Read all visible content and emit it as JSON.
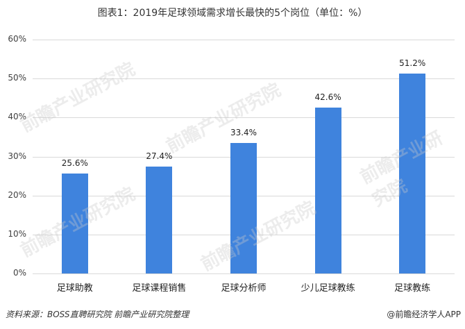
{
  "title": "图表1：2019年足球领域需求增长最快的5个岗位（单位：%）",
  "chart_data": {
    "type": "bar",
    "title": "图表1：2019年足球领域需求增长最快的5个岗位（单位：%）",
    "categories": [
      "足球助教",
      "足球课程销售",
      "足球分析师",
      "少儿足球教练",
      "足球教练"
    ],
    "values": [
      25.6,
      27.4,
      33.4,
      42.6,
      51.2
    ],
    "value_labels": [
      "25.6%",
      "27.4%",
      "33.4%",
      "42.6%",
      "51.2%"
    ],
    "xlabel": "",
    "ylabel": "",
    "ylim": [
      0,
      60
    ],
    "yticks": [
      "0%",
      "10%",
      "20%",
      "30%",
      "40%",
      "50%",
      "60%"
    ],
    "grid": true,
    "legend": "none",
    "bar_color": "#3f83dd"
  },
  "footer": {
    "source": "资料来源：BOSS直聘研究院 前瞻产业研究院整理",
    "credit": "@前瞻经济学人APP"
  },
  "watermark": "前瞻产业研究院"
}
